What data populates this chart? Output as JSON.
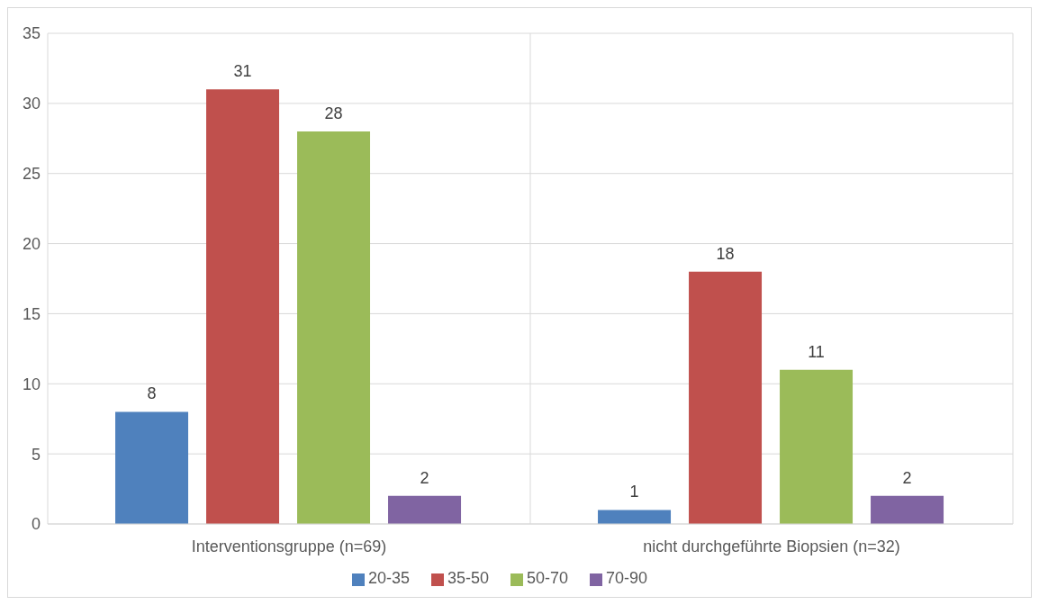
{
  "chart_data": {
    "type": "bar",
    "categories": [
      "Interventionsgruppe (n=69)",
      "nicht durchgeführte Biopsien (n=32)"
    ],
    "series": [
      {
        "name": "20-35",
        "color": "#4f81bd",
        "values": [
          8,
          1
        ]
      },
      {
        "name": "35-50",
        "color": "#c0504d",
        "values": [
          31,
          18
        ]
      },
      {
        "name": "50-70",
        "color": "#9bbb59",
        "values": [
          28,
          11
        ]
      },
      {
        "name": "70-90",
        "color": "#8064a2",
        "values": [
          2,
          2
        ]
      }
    ],
    "ylim": [
      0,
      35
    ],
    "yticks": [
      0,
      5,
      10,
      15,
      20,
      25,
      30,
      35
    ],
    "grid": true,
    "legend": "bottom",
    "data_labels": true
  }
}
